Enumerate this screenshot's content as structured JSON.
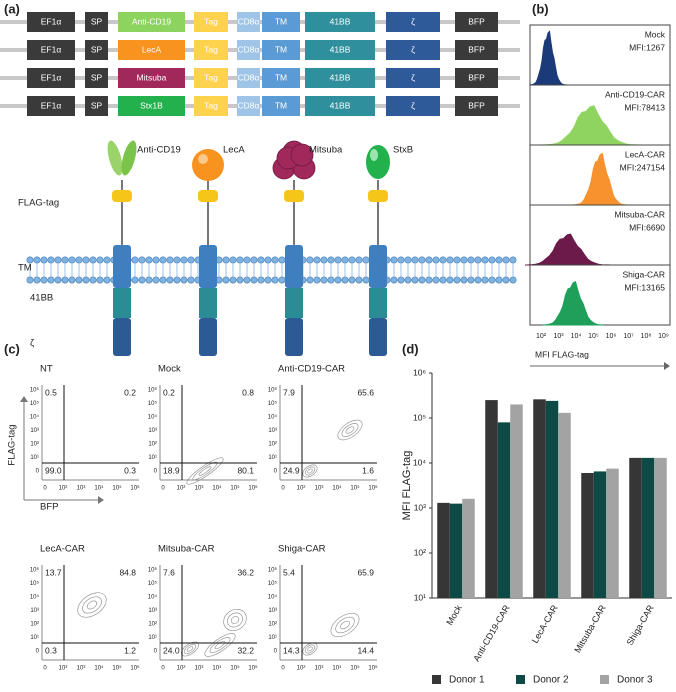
{
  "panel_a": {
    "label": "(a)",
    "constructs": [
      {
        "color": "#8dd35f",
        "parts": [
          "EF1α",
          "SP",
          "Anti-CD19",
          "Tag",
          "CD8α",
          "TM",
          "41BB",
          "ζ",
          "BFP"
        ]
      },
      {
        "color": "#f7931e",
        "parts": [
          "EF1α",
          "SP",
          "LecA",
          "Tag",
          "CD8α",
          "TM",
          "41BB",
          "ζ",
          "BFP"
        ]
      },
      {
        "color": "#a0285a",
        "parts": [
          "EF1α",
          "SP",
          "Mitsuba",
          "Tag",
          "CD8α",
          "TM",
          "41BB",
          "ζ",
          "BFP"
        ]
      },
      {
        "color": "#22b14c",
        "parts": [
          "EF1α",
          "SP",
          "Stx1B",
          "Tag",
          "CD8α",
          "TM",
          "41BB",
          "ζ",
          "BFP"
        ]
      }
    ],
    "binders": [
      "Anti-CD19",
      "LecA",
      "Mitsuba",
      "StxB"
    ],
    "tag_label": "FLAG-tag",
    "domain_labels": [
      "TM",
      "41BB",
      "ζ"
    ]
  },
  "panel_b": {
    "label": "(b)",
    "samples": [
      {
        "name": "Mock",
        "mfi": "MFI:1267",
        "color": "#1a3a7a"
      },
      {
        "name": "Anti-CD19-CAR",
        "mfi": "MFI:78413",
        "color": "#8fd460"
      },
      {
        "name": "LecA-CAR",
        "mfi": "MFI:247154",
        "color": "#f7922e"
      },
      {
        "name": "Mitsuba-CAR",
        "mfi": "MFI:6690",
        "color": "#6b1a4a"
      },
      {
        "name": "Shiga-CAR",
        "mfi": "MFI:13165",
        "color": "#1fa05a"
      }
    ],
    "xticks": [
      "10²",
      "10³",
      "10⁴",
      "10⁵",
      "10⁶",
      "10⁷",
      "10⁸",
      "10⁹"
    ],
    "xlabel": "MFI FLAG-tag"
  },
  "panel_c": {
    "label": "(c)",
    "plots": [
      {
        "title": "NT",
        "quadrants": [
          "0.5",
          "0.2",
          "99.0",
          "0.3"
        ]
      },
      {
        "title": "Mock",
        "quadrants": [
          "0.2",
          "0.8",
          "18.9",
          "80.1"
        ]
      },
      {
        "title": "Anti-CD19-CAR",
        "quadrants": [
          "7.9",
          "65.6",
          "24.9",
          "1.6"
        ]
      },
      {
        "title": "LecA-CAR",
        "quadrants": [
          "13.7",
          "84.8",
          "0.3",
          "1.2"
        ]
      },
      {
        "title": "Mitsuba-CAR",
        "quadrants": [
          "7.6",
          "36.2",
          "24.0",
          "32.2"
        ]
      },
      {
        "title": "Shiga-CAR",
        "quadrants": [
          "5.4",
          "65.9",
          "14.3",
          "14.4"
        ]
      }
    ],
    "yticks": [
      "10⁶",
      "10⁵",
      "10⁴",
      "10³",
      "10²",
      "10¹",
      "0"
    ],
    "xticks": [
      "0",
      "10²",
      "10³",
      "10⁴",
      "10⁵",
      "10⁶"
    ],
    "ylabel": "FLAG-tag",
    "xlabel": "BFP"
  },
  "panel_d_label": "(d)",
  "chart_data": {
    "type": "bar",
    "ylabel": "MFI FLAG-tag",
    "yscale": "log",
    "categories": [
      "Mock",
      "Anti-CD19-CAR",
      "LecA-CAR",
      "Mitsuba-CAR",
      "Shiga-CAR"
    ],
    "series": [
      {
        "name": "Donor 1",
        "color": "#363636",
        "values": [
          1300,
          250000,
          260000,
          6000,
          13000
        ]
      },
      {
        "name": "Donor 2",
        "color": "#0e4a45",
        "values": [
          1250,
          80000,
          240000,
          6500,
          13000
        ]
      },
      {
        "name": "Donor 3",
        "color": "#a3a3a3",
        "values": [
          1600,
          200000,
          130000,
          7500,
          13000
        ]
      }
    ],
    "ylim": [
      10,
      1000000
    ],
    "yticks": [
      {
        "value": 10,
        "label": "10¹"
      },
      {
        "value": 100,
        "label": "10²"
      },
      {
        "value": 1000,
        "label": "10³"
      },
      {
        "value": 10000,
        "label": "10⁴"
      },
      {
        "value": 100000,
        "label": "10⁵"
      },
      {
        "value": 1000000,
        "label": "10⁶"
      }
    ],
    "legend": "bottom"
  }
}
